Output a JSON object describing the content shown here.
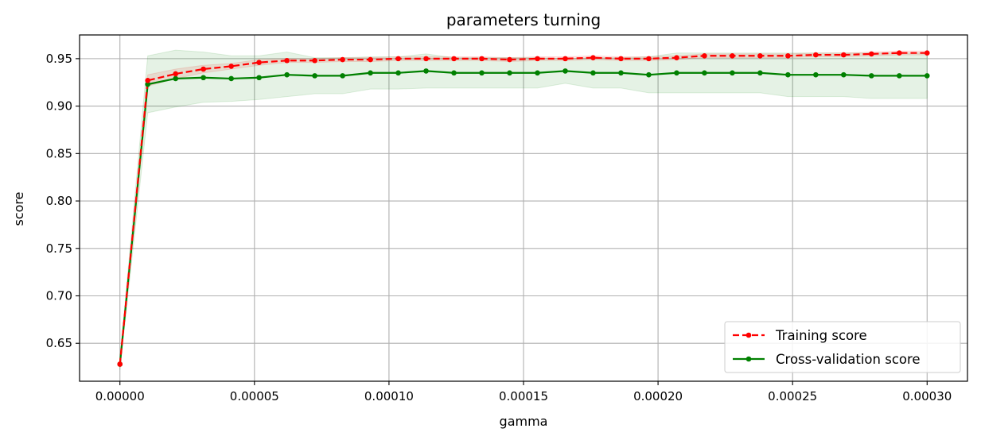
{
  "chart_data": {
    "type": "line",
    "title": "parameters turning",
    "xlabel": "gamma",
    "ylabel": "score",
    "xlim": [
      -1.5e-05,
      0.000315
    ],
    "ylim": [
      0.61,
      0.975
    ],
    "x_ticks": [
      0,
      5e-05,
      0.0001,
      0.00015,
      0.0002,
      0.00025,
      0.0003
    ],
    "x_tick_labels": [
      "0.00000",
      "0.00005",
      "0.00010",
      "0.00015",
      "0.00020",
      "0.00025",
      "0.00030"
    ],
    "y_ticks": [
      0.65,
      0.7,
      0.75,
      0.8,
      0.85,
      0.9,
      0.95
    ],
    "y_tick_labels": [
      "0.65",
      "0.70",
      "0.75",
      "0.80",
      "0.85",
      "0.90",
      "0.95"
    ],
    "grid": true,
    "legend_position": "lower-right",
    "x": [
      0,
      1.034e-05,
      2.069e-05,
      3.103e-05,
      4.138e-05,
      5.172e-05,
      6.207e-05,
      7.241e-05,
      8.276e-05,
      9.31e-05,
      0.00010345,
      0.00011379,
      0.00012414,
      0.00013448,
      0.00014483,
      0.00015517,
      0.00016552,
      0.00017586,
      0.00018621,
      0.00019655,
      0.0002069,
      0.00021724,
      0.00022759,
      0.00023793,
      0.00024828,
      0.00025862,
      0.00026897,
      0.00027931,
      0.00028966,
      0.0003
    ],
    "series": [
      {
        "name": "Training score",
        "color": "#ff0000",
        "line_style": "dashed",
        "values": [
          0.628,
          0.927,
          0.934,
          0.939,
          0.942,
          0.946,
          0.948,
          0.948,
          0.949,
          0.949,
          0.95,
          0.95,
          0.95,
          0.95,
          0.949,
          0.95,
          0.95,
          0.951,
          0.95,
          0.95,
          0.951,
          0.953,
          0.953,
          0.953,
          0.953,
          0.954,
          0.954,
          0.955,
          0.956,
          0.956
        ],
        "band_lower": [
          0.626,
          0.921,
          0.929,
          0.935,
          0.939,
          0.943,
          0.946,
          0.946,
          0.947,
          0.947,
          0.948,
          0.948,
          0.948,
          0.948,
          0.947,
          0.948,
          0.948,
          0.949,
          0.948,
          0.948,
          0.949,
          0.951,
          0.951,
          0.951,
          0.951,
          0.952,
          0.952,
          0.953,
          0.954,
          0.954
        ],
        "band_upper": [
          0.63,
          0.933,
          0.939,
          0.943,
          0.945,
          0.949,
          0.95,
          0.95,
          0.951,
          0.951,
          0.952,
          0.952,
          0.952,
          0.952,
          0.951,
          0.952,
          0.952,
          0.953,
          0.952,
          0.952,
          0.953,
          0.955,
          0.955,
          0.955,
          0.955,
          0.956,
          0.956,
          0.957,
          0.958,
          0.958
        ]
      },
      {
        "name": "Cross-validation score",
        "color": "#008000",
        "line_style": "solid",
        "values": [
          0.628,
          0.923,
          0.929,
          0.93,
          0.929,
          0.93,
          0.933,
          0.932,
          0.932,
          0.935,
          0.935,
          0.937,
          0.935,
          0.935,
          0.935,
          0.935,
          0.937,
          0.935,
          0.935,
          0.933,
          0.935,
          0.935,
          0.935,
          0.935,
          0.933,
          0.933,
          0.933,
          0.932,
          0.932,
          0.932
        ],
        "band_lower": [
          0.622,
          0.893,
          0.899,
          0.904,
          0.905,
          0.907,
          0.91,
          0.913,
          0.913,
          0.918,
          0.918,
          0.919,
          0.919,
          0.919,
          0.919,
          0.919,
          0.924,
          0.919,
          0.919,
          0.914,
          0.914,
          0.914,
          0.914,
          0.914,
          0.91,
          0.91,
          0.91,
          0.908,
          0.908,
          0.908
        ],
        "band_upper": [
          0.634,
          0.953,
          0.959,
          0.957,
          0.953,
          0.953,
          0.957,
          0.951,
          0.951,
          0.952,
          0.952,
          0.955,
          0.951,
          0.951,
          0.951,
          0.951,
          0.95,
          0.951,
          0.951,
          0.952,
          0.956,
          0.956,
          0.956,
          0.956,
          0.956,
          0.956,
          0.956,
          0.956,
          0.956,
          0.956
        ]
      }
    ]
  }
}
